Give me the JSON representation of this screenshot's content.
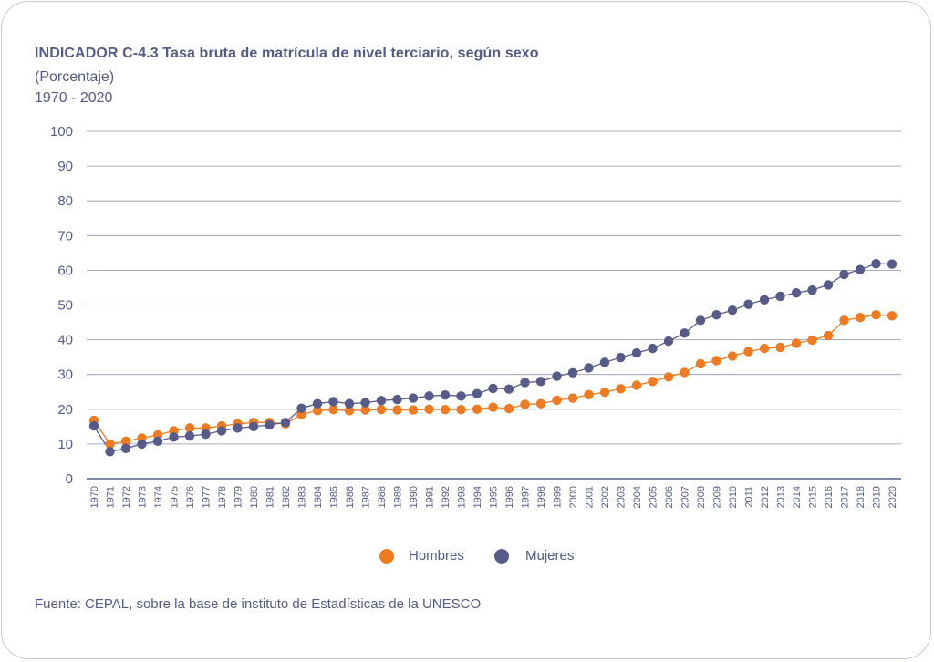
{
  "title": "INDICADOR C-4.3 Tasa bruta de matrícula de nivel terciario, según sexo",
  "subtitle": "(Porcentaje)",
  "period": "1970 - 2020",
  "source": "Fuente: CEPAL, sobre la base de instituto de Estadísticas de la UNESCO",
  "colors": {
    "hombres": "#f07a1f",
    "mujeres": "#575b89",
    "grid": "#8f92ad",
    "axis": "#575b89"
  },
  "chart_data": {
    "type": "line",
    "title": "INDICADOR C-4.3 Tasa bruta de matrícula de nivel terciario, según sexo",
    "xlabel": "",
    "ylabel": "(Porcentaje)",
    "ylim": [
      0,
      100
    ],
    "yticks": [
      0,
      10,
      20,
      30,
      40,
      50,
      60,
      70,
      80,
      90,
      100
    ],
    "legend_position": "bottom-center",
    "x": [
      "1970",
      "1971",
      "1972",
      "1973",
      "1974",
      "1975",
      "1976",
      "1977",
      "1978",
      "1979",
      "1980",
      "1981",
      "1982",
      "1983",
      "1984",
      "1985",
      "1986",
      "1987",
      "1988",
      "1989",
      "1990",
      "1991",
      "1992",
      "1993",
      "1994",
      "1995",
      "1996",
      "1997",
      "1998",
      "1999",
      "2000",
      "2001",
      "2002",
      "2003",
      "2004",
      "2005",
      "2006",
      "2007",
      "2008",
      "2009",
      "2010",
      "2011",
      "2012",
      "2013",
      "2014",
      "2015",
      "2016",
      "2017",
      "2018",
      "2019",
      "2020"
    ],
    "series": [
      {
        "name": "Hombres",
        "values": [
          16.8,
          10.0,
          10.8,
          11.7,
          12.6,
          13.8,
          14.6,
          14.6,
          15.2,
          15.8,
          16.2,
          16.2,
          15.8,
          18.5,
          19.6,
          19.9,
          19.6,
          19.8,
          19.9,
          19.8,
          19.8,
          20.0,
          19.9,
          19.9,
          20.0,
          20.6,
          20.2,
          21.4,
          21.6,
          22.6,
          23.2,
          24.2,
          24.9,
          25.9,
          26.9,
          28.0,
          29.3,
          30.6,
          33.1,
          34.0,
          35.3,
          36.6,
          37.5,
          37.8,
          39.0,
          39.9,
          41.2,
          45.6,
          46.4,
          47.2,
          46.9
        ]
      },
      {
        "name": "Mujeres",
        "values": [
          15.2,
          7.8,
          8.7,
          10.0,
          10.8,
          12.0,
          12.3,
          12.8,
          13.8,
          14.6,
          15.0,
          15.5,
          16.2,
          20.3,
          21.6,
          22.2,
          21.6,
          21.9,
          22.5,
          22.8,
          23.2,
          23.8,
          24.1,
          23.8,
          24.5,
          26.0,
          25.8,
          27.7,
          28.0,
          29.5,
          30.5,
          31.9,
          33.5,
          34.9,
          36.2,
          37.5,
          39.6,
          41.9,
          45.6,
          47.2,
          48.5,
          50.2,
          51.5,
          52.5,
          53.5,
          54.3,
          55.8,
          58.8,
          60.2,
          61.9,
          61.8
        ]
      }
    ]
  },
  "legend": {
    "hombres": "Hombres",
    "mujeres": "Mujeres"
  }
}
